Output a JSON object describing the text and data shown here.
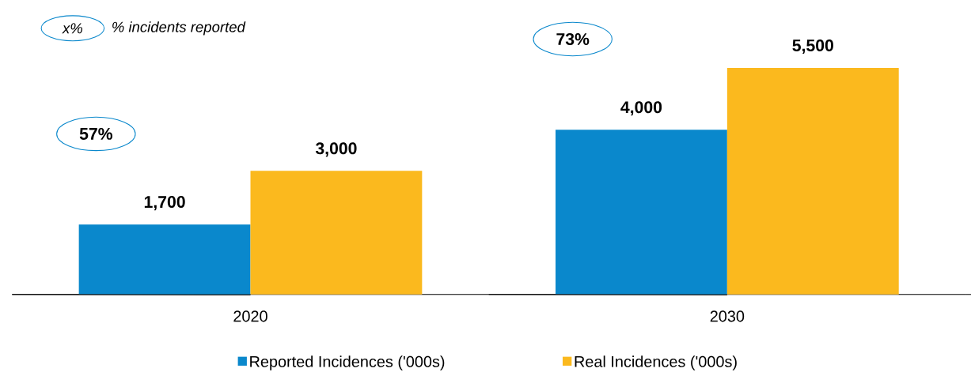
{
  "chart_data": {
    "type": "bar",
    "categories": [
      "2020",
      "2030"
    ],
    "series": [
      {
        "name": "Reported Incidences ('000s)",
        "color": "#0a88cc",
        "values": [
          1700,
          4000
        ],
        "value_labels": [
          "1,700",
          "4,000"
        ]
      },
      {
        "name": "Real Incidences ('000s)",
        "color": "#fbb91e",
        "values": [
          3000,
          5500
        ],
        "value_labels": [
          "3,000",
          "5,500"
        ]
      }
    ],
    "annotations": [
      "x%",
      "% incidents reported",
      "57%",
      "73%"
    ],
    "legend": "bottom"
  }
}
